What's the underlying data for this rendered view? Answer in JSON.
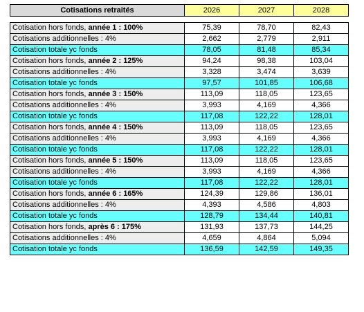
{
  "header": {
    "title": "Cotisations retraités",
    "years": [
      "2026",
      "2027",
      "2028"
    ]
  },
  "colors": {
    "header_title_bg": "#d9d9d9",
    "header_year_bg": "#ffff99",
    "total_row_bg": "#66ffff",
    "label_bg": "#ededed"
  },
  "blocks": [
    {
      "base": {
        "prefix": "Cotisation hors fonds, ",
        "strong": "année 1 : 100%",
        "values": [
          "75,39",
          "78,70",
          "82,43"
        ]
      },
      "add": {
        "label": "Cotisations additionnelles : 4%",
        "values": [
          "2,662",
          "2,779",
          "2,911"
        ]
      },
      "total": {
        "label": "Cotisation totale yc fonds",
        "values": [
          "78,05",
          "81,48",
          "85,34"
        ]
      }
    },
    {
      "base": {
        "prefix": "Cotisation hors fonds, ",
        "strong": "année 2 : 125%",
        "values": [
          "94,24",
          "98,38",
          "103,04"
        ]
      },
      "add": {
        "label": "Cotisations additionnelles : 4%",
        "values": [
          "3,328",
          "3,474",
          "3,639"
        ]
      },
      "total": {
        "label": "Cotisation totale yc fonds",
        "values": [
          "97,57",
          "101,85",
          "106,68"
        ]
      }
    },
    {
      "base": {
        "prefix": "Cotisation hors fonds, ",
        "strong": "année 3 : 150%",
        "values": [
          "113,09",
          "118,05",
          "123,65"
        ]
      },
      "add": {
        "label": "Cotisations additionnelles : 4%",
        "values": [
          "3,993",
          "4,169",
          "4,366"
        ]
      },
      "total": {
        "label": "Cotisation totale yc fonds",
        "values": [
          "117,08",
          "122,22",
          "128,01"
        ]
      }
    },
    {
      "base": {
        "prefix": "Cotisation hors fonds, ",
        "strong": "année 4 : 150%",
        "values": [
          "113,09",
          "118,05",
          "123,65"
        ]
      },
      "add": {
        "label": "Cotisations additionnelles : 4%",
        "values": [
          "3,993",
          "4,169",
          "4,366"
        ]
      },
      "total": {
        "label": "Cotisation totale yc fonds",
        "values": [
          "117,08",
          "122,22",
          "128,01"
        ]
      }
    },
    {
      "base": {
        "prefix": "Cotisation hors fonds, ",
        "strong": "année 5 : 150%",
        "values": [
          "113,09",
          "118,05",
          "123,65"
        ]
      },
      "add": {
        "label": "Cotisations additionnelles : 4%",
        "values": [
          "3,993",
          "4,169",
          "4,366"
        ]
      },
      "total": {
        "label": "Cotisation totale yc fonds",
        "values": [
          "117,08",
          "122,22",
          "128,01"
        ]
      }
    },
    {
      "base": {
        "prefix": "Cotisation hors fonds, ",
        "strong": "année 6 : 165%",
        "values": [
          "124,39",
          "129,86",
          "136,01"
        ]
      },
      "add": {
        "label": "Cotisations additionnelles : 4%",
        "values": [
          "4,393",
          "4,586",
          "4,803"
        ]
      },
      "total": {
        "label": "Cotisation totale yc fonds",
        "values": [
          "128,79",
          "134,44",
          "140,81"
        ]
      }
    },
    {
      "base": {
        "prefix": "Cotisation hors fonds, ",
        "strong": "après 6 : 175%",
        "values": [
          "131,93",
          "137,73",
          "144,25"
        ]
      },
      "add": {
        "label": "Cotisations additionnelles : 4%",
        "values": [
          "4,659",
          "4,864",
          "5,094"
        ]
      },
      "total": {
        "label": "Cotisation totale yc fonds",
        "values": [
          "136,59",
          "142,59",
          "149,35"
        ]
      }
    }
  ]
}
